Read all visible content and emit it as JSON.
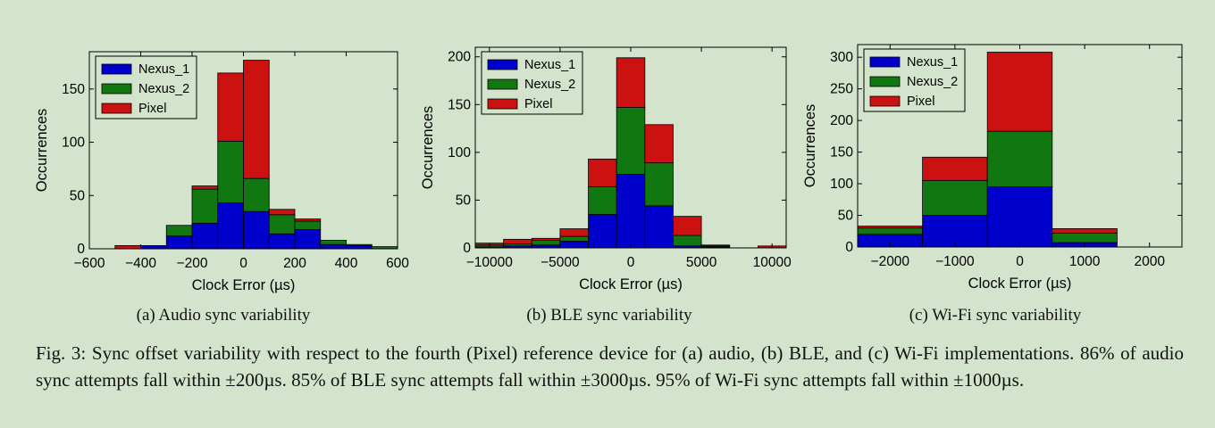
{
  "charts": [
    {
      "type": "bar",
      "stacked": true,
      "xlabel": "Clock Error (µs)",
      "ylabel": "Occurrences",
      "xlim": [
        -600,
        600
      ],
      "ylim": [
        0,
        185
      ],
      "xticks": [
        -600,
        -400,
        -200,
        0,
        200,
        400,
        600
      ],
      "xtick_labels": [
        "−600",
        "−400",
        "−200",
        "0",
        "200",
        "400",
        "600"
      ],
      "yticks": [
        0,
        50,
        100,
        150
      ],
      "bin_centers": [
        -450,
        -350,
        -250,
        -150,
        -50,
        50,
        150,
        250,
        350,
        450,
        550
      ],
      "bin_width": 100,
      "series": [
        {
          "name": "Nexus_1",
          "color": "#0000cc",
          "values": [
            0,
            3,
            12,
            24,
            43,
            35,
            14,
            18,
            4,
            3,
            0
          ]
        },
        {
          "name": "Nexus_2",
          "color": "#117711",
          "values": [
            0,
            0,
            10,
            32,
            58,
            31,
            18,
            8,
            4,
            1,
            2
          ]
        },
        {
          "name": "Pixel",
          "color": "#cc1111",
          "values": [
            3,
            0,
            0,
            3,
            64,
            111,
            5,
            2,
            0,
            0,
            0
          ]
        }
      ],
      "legend": "top-left",
      "caption": "(a) Audio sync variability"
    },
    {
      "type": "bar",
      "stacked": true,
      "xlabel": "Clock Error (µs)",
      "ylabel": "Occurrences",
      "xlim": [
        -11000,
        11000
      ],
      "ylim": [
        0,
        210
      ],
      "xticks": [
        -10000,
        -5000,
        0,
        5000,
        10000
      ],
      "xtick_labels": [
        "−10000",
        "−5000",
        "0",
        "5000",
        "10000"
      ],
      "yticks": [
        0,
        50,
        100,
        150,
        200
      ],
      "bin_centers": [
        -10000,
        -8000,
        -6000,
        -4000,
        -2000,
        0,
        2000,
        4000,
        6000,
        8000,
        10000
      ],
      "bin_width": 2000,
      "series": [
        {
          "name": "Nexus_1",
          "color": "#0000cc",
          "values": [
            1,
            2,
            3,
            7,
            35,
            77,
            44,
            2,
            1,
            0,
            0
          ]
        },
        {
          "name": "Nexus_2",
          "color": "#117711",
          "values": [
            2,
            2,
            5,
            5,
            29,
            70,
            45,
            11,
            1,
            0,
            0
          ]
        },
        {
          "name": "Pixel",
          "color": "#cc1111",
          "values": [
            2,
            5,
            2,
            8,
            29,
            52,
            40,
            20,
            1,
            0,
            2
          ]
        }
      ],
      "legend": "top-left",
      "caption": "(b) BLE sync variability"
    },
    {
      "type": "bar",
      "stacked": true,
      "xlabel": "Clock Error (µs)",
      "ylabel": "Occurrences",
      "xlim": [
        -2500,
        2500
      ],
      "ylim": [
        0,
        320
      ],
      "xticks": [
        -2000,
        -1000,
        0,
        1000,
        2000
      ],
      "xtick_labels": [
        "−2000",
        "−1000",
        "0",
        "1000",
        "2000"
      ],
      "yticks": [
        0,
        50,
        100,
        150,
        200,
        250,
        300
      ],
      "bin_centers": [
        -2000,
        -1000,
        0,
        1000,
        2000
      ],
      "bin_width": 1000,
      "series": [
        {
          "name": "Nexus_1",
          "color": "#0000cc",
          "values": [
            20,
            50,
            95,
            7,
            0
          ]
        },
        {
          "name": "Nexus_2",
          "color": "#117711",
          "values": [
            10,
            55,
            88,
            15,
            0
          ]
        },
        {
          "name": "Pixel",
          "color": "#cc1111",
          "values": [
            3,
            37,
            125,
            7,
            0
          ]
        }
      ],
      "legend": "top-left",
      "caption": "(c) Wi-Fi sync variability"
    }
  ],
  "figure_caption": "Fig. 3: Sync offset variability with respect to the fourth (Pixel) reference device for (a) audio, (b) BLE, and (c) Wi-Fi implementations. 86% of audio sync attempts fall within ±200µs. 85% of BLE sync attempts fall within ±3000µs. 95% of Wi-Fi sync attempts fall within ±1000µs."
}
